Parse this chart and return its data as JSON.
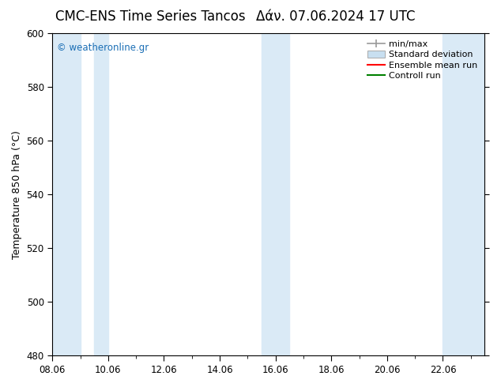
{
  "title": "CMC-ENS Time Series Tancos",
  "title2": "Δάν. 07.06.2024 17 UTC",
  "ylabel": "Temperature 850 hPa (°C)",
  "ylim": [
    480,
    600
  ],
  "yticks": [
    480,
    500,
    520,
    540,
    560,
    580,
    600
  ],
  "xtick_labels": [
    "08.06",
    "10.06",
    "12.06",
    "14.06",
    "16.06",
    "18.06",
    "20.06",
    "22.06"
  ],
  "xtick_positions": [
    0,
    2,
    4,
    6,
    8,
    10,
    12,
    14
  ],
  "xlim": [
    0,
    15.5
  ],
  "shade_bands": [
    {
      "x_start": 0,
      "x_end": 1,
      "color": "#daeaf6"
    },
    {
      "x_start": 1.5,
      "x_end": 2,
      "color": "#daeaf6"
    },
    {
      "x_start": 7.5,
      "x_end": 8,
      "color": "#daeaf6"
    },
    {
      "x_start": 8,
      "x_end": 8.5,
      "color": "#daeaf6"
    },
    {
      "x_start": 14,
      "x_end": 14.5,
      "color": "#daeaf6"
    },
    {
      "x_start": 14.5,
      "x_end": 15.5,
      "color": "#daeaf6"
    }
  ],
  "watermark_text": "© weatheronline.gr",
  "watermark_color": "#1a6eb5",
  "legend_labels": [
    "min/max",
    "Standard deviation",
    "Ensemble mean run",
    "Controll run"
  ],
  "bg_color": "#ffffff",
  "plot_bg_color": "#ffffff",
  "title_fontsize": 12,
  "axis_fontsize": 9,
  "tick_fontsize": 8.5,
  "legend_fontsize": 8
}
